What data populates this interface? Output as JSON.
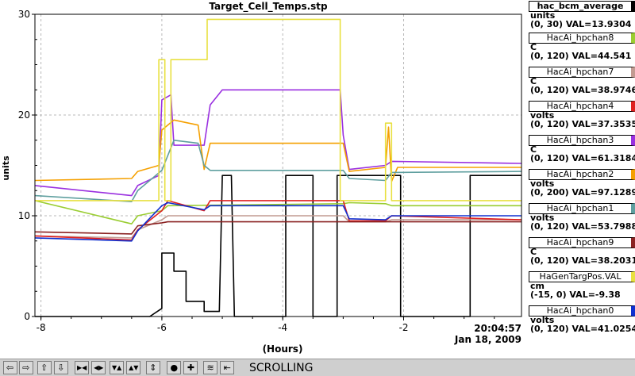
{
  "chart_data": {
    "type": "line",
    "title": "Target_Cell_Temps.stp",
    "xlabel": "(Hours)",
    "ylabel": "units",
    "xlim": [
      -8.1,
      -0.05
    ],
    "ylim": [
      0,
      30
    ],
    "x_ticks": [
      -8,
      -6,
      -4,
      -2
    ],
    "x_tick_labels": [
      "-8",
      "-6",
      "-4",
      "-2"
    ],
    "y_ticks": [
      0,
      10,
      20,
      30
    ],
    "y_tick_labels": [
      "0",
      "10",
      "20",
      "30"
    ],
    "grid": true,
    "time_label": "20:04:57",
    "date_label": "Jan 18, 2009",
    "series": [
      {
        "key": "bcm",
        "color": "#000000",
        "x": [
          -8.1,
          -6.2,
          -6.0,
          -6.0,
          -5.8,
          -5.8,
          -5.6,
          -5.6,
          -5.3,
          -5.3,
          -5.05,
          -5.0,
          -4.85,
          -4.8,
          -3.95,
          -3.95,
          -3.5,
          -3.5,
          -3.1,
          -3.1,
          -2.05,
          -2.05,
          -0.9,
          -0.9,
          -0.5,
          -0.5,
          -0.05
        ],
        "y": [
          0,
          0,
          0.8,
          6.3,
          6.3,
          4.5,
          4.5,
          1.5,
          1.5,
          0.5,
          0.5,
          14,
          14,
          0,
          0,
          14,
          14,
          0,
          0,
          14,
          14,
          0,
          0,
          14,
          14,
          14,
          14
        ]
      },
      {
        "key": "hpchan8",
        "color": "#9acd32",
        "x": [
          -8.1,
          -6.5,
          -6.4,
          -6.0,
          -5.9,
          -3.0,
          -2.9,
          -2.3,
          -2.2,
          -0.05
        ],
        "y": [
          11.5,
          9.2,
          10,
          10.5,
          11,
          11.2,
          11.3,
          11.2,
          11,
          11
        ]
      },
      {
        "key": "hpchan7",
        "color": "#c29b92",
        "x": [
          -8.1,
          -6.5,
          -6.4,
          -6.0,
          -5.9,
          -3.0,
          -2.9,
          -2.3,
          -2.2,
          -0.05
        ],
        "y": [
          8,
          7.8,
          8.6,
          9.6,
          10,
          10,
          9.4,
          9.4,
          9.6,
          9.6
        ]
      },
      {
        "key": "hpchan4",
        "color": "#e02020",
        "x": [
          -8.1,
          -6.5,
          -6.4,
          -6.0,
          -5.9,
          -5.3,
          -5.2,
          -3.0,
          -2.9,
          -2.3,
          -2.2,
          -0.05
        ],
        "y": [
          8,
          7.6,
          8.6,
          10.5,
          11.5,
          10.5,
          11.5,
          11.5,
          9.5,
          9.5,
          10,
          9.6
        ]
      },
      {
        "key": "hpchan3",
        "color": "#9a30e0",
        "x": [
          -8.1,
          -6.5,
          -6.4,
          -6.05,
          -6.0,
          -5.85,
          -5.8,
          -5.3,
          -5.2,
          -5.0,
          -3.05,
          -3.0,
          -2.9,
          -2.3,
          -2.2,
          -0.05
        ],
        "y": [
          13,
          12,
          13,
          14,
          21.5,
          22,
          17,
          17,
          21,
          22.5,
          22.5,
          18,
          14.6,
          15,
          15.4,
          15.2
        ]
      },
      {
        "key": "hpchan2",
        "color": "#f5a000",
        "x": [
          -8.1,
          -6.5,
          -6.4,
          -6.05,
          -6.0,
          -5.8,
          -5.4,
          -5.3,
          -5.2,
          -3.05,
          -3.0,
          -2.9,
          -2.3,
          -2.25,
          -2.2,
          -2.1,
          -0.05
        ],
        "y": [
          13.5,
          13.7,
          14.4,
          15,
          18.5,
          19.5,
          19,
          14.6,
          17.2,
          17.2,
          17.2,
          14.4,
          14.8,
          18.8,
          13.4,
          14.8,
          14.8
        ]
      },
      {
        "key": "hpchan1",
        "color": "#5f9f9f",
        "x": [
          -8.1,
          -6.5,
          -6.4,
          -6.0,
          -5.8,
          -5.4,
          -5.3,
          -5.2,
          -3.0,
          -2.9,
          -2.3,
          -2.2,
          -0.05
        ],
        "y": [
          12,
          11.4,
          12.5,
          14.5,
          17.5,
          17.2,
          15,
          14.5,
          14.5,
          13.7,
          13.5,
          14.3,
          14.4
        ]
      },
      {
        "key": "hpchan9",
        "color": "#8b2222",
        "x": [
          -8.1,
          -6.5,
          -6.4,
          -6.0,
          -5.9,
          -0.05
        ],
        "y": [
          8.4,
          8.2,
          9,
          9.3,
          9.4,
          9.4
        ]
      },
      {
        "key": "targpos",
        "color": "#e8e040",
        "x": [
          -8.1,
          -6.05,
          -6.05,
          -5.95,
          -5.95,
          -5.85,
          -5.85,
          -5.8,
          -5.8,
          -5.65,
          -5.25,
          -5.25,
          -3.05,
          -3.05,
          -2.3,
          -2.3,
          -2.2,
          -2.2,
          -0.05
        ],
        "y": [
          11.5,
          11.5,
          25.5,
          25.5,
          11.5,
          11.5,
          25.5,
          25.5,
          25.5,
          25.5,
          25.5,
          29.5,
          29.5,
          11.5,
          11.5,
          19.2,
          19.2,
          11.5,
          11.5
        ]
      },
      {
        "key": "hpchan0",
        "color": "#1030d0",
        "x": [
          -8.1,
          -6.5,
          -6.4,
          -6.0,
          -5.9,
          -5.3,
          -5.2,
          -3.0,
          -2.9,
          -2.3,
          -2.2,
          -0.05
        ],
        "y": [
          7.8,
          7.5,
          8.5,
          11,
          11.3,
          10.6,
          11,
          11,
          9.7,
          9.6,
          10,
          10
        ]
      }
    ]
  },
  "legend": [
    {
      "name": "hac_bcm_average",
      "units": "units",
      "range_val": "(0, 30) VAL=13.9304",
      "color": "#000000"
    },
    {
      "name": "HacAi_hpchan8",
      "units": "C",
      "range_val": "(0, 120) VAL=44.541",
      "color": "#9acd32"
    },
    {
      "name": "HacAi_hpchan7",
      "units": "C",
      "range_val": "(0, 120) VAL=38.9746",
      "color": "#c29b92"
    },
    {
      "name": "HacAi_hpchan4",
      "units": "volts",
      "range_val": "(0, 120) VAL=37.3535",
      "color": "#e02020"
    },
    {
      "name": "HacAi_hpchan3",
      "units": "C",
      "range_val": "(0, 120) VAL=61.3184",
      "color": "#9a30e0"
    },
    {
      "name": "HacAi_hpchan2",
      "units": "volts",
      "range_val": "(0, 200) VAL=97.1289",
      "color": "#f5a000"
    },
    {
      "name": "HacAi_hpchan1",
      "units": "volts",
      "range_val": "(0, 120) VAL=53.7988",
      "color": "#5f9f9f"
    },
    {
      "name": "HacAi_hpchan9",
      "units": "C",
      "range_val": "(0, 120) VAL=38.2031",
      "color": "#8b2222"
    },
    {
      "name": "HaGenTargPos.VAL",
      "units": "cm",
      "range_val": "(-15, 0) VAL=-9.38",
      "color": "#e8e040"
    },
    {
      "name": "HacAi_hpchan0",
      "units": "volts",
      "range_val": "(0, 120) VAL=41.0254",
      "color": "#1030d0"
    }
  ],
  "toolbar": {
    "buttons": [
      {
        "name": "scroll-left-button",
        "glyph": "⇦"
      },
      {
        "name": "scroll-right-button",
        "glyph": "⇨"
      },
      {
        "name": "scroll-up-button",
        "glyph": "⇧"
      },
      {
        "name": "scroll-down-button",
        "glyph": "⇩"
      },
      {
        "name": "zoom-in-x-button",
        "glyph": "▶◀"
      },
      {
        "name": "zoom-out-x-button",
        "glyph": "◀▶"
      },
      {
        "name": "zoom-in-y-button",
        "glyph": "▼▲"
      },
      {
        "name": "zoom-out-y-button",
        "glyph": "▲▼"
      },
      {
        "name": "autoscale-button",
        "glyph": "⇕"
      },
      {
        "name": "record-button",
        "glyph": "●"
      },
      {
        "name": "add-button",
        "glyph": "✚"
      },
      {
        "name": "graph-mode-button",
        "glyph": "≋"
      },
      {
        "name": "scroll-mode-button",
        "glyph": "⇤"
      }
    ],
    "status": "SCROLLING"
  }
}
